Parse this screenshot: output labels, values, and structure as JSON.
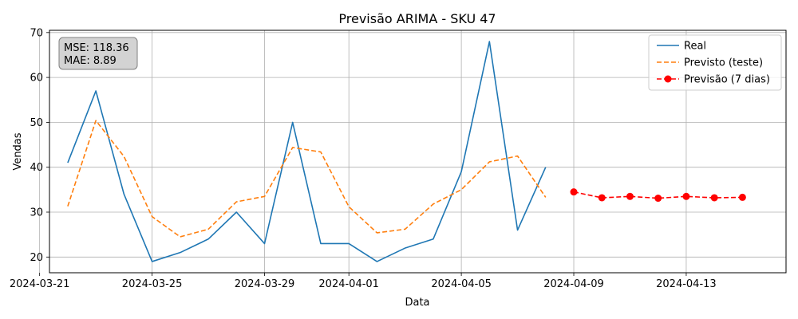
{
  "chart_data": {
    "type": "line",
    "title": "Previsão ARIMA - SKU 47",
    "xlabel": "Data",
    "ylabel": "Vendas",
    "xlim": [
      "2024-03-21",
      "2024-04-16"
    ],
    "ylim": [
      16.5,
      70.5
    ],
    "x_ticks": [
      "2024-03-21",
      "2024-03-25",
      "2024-03-29",
      "2024-04-01",
      "2024-04-05",
      "2024-04-09",
      "2024-04-13"
    ],
    "y_ticks": [
      20,
      30,
      40,
      50,
      60,
      70
    ],
    "grid": true,
    "legend_position": "top-right",
    "annotation": {
      "lines": [
        "MSE: 118.36",
        "MAE: 8.89"
      ]
    },
    "series": [
      {
        "name": "Real",
        "color": "#1f77b4",
        "style": "solid",
        "x": [
          "2024-03-22",
          "2024-03-23",
          "2024-03-24",
          "2024-03-25",
          "2024-03-26",
          "2024-03-27",
          "2024-03-28",
          "2024-03-29",
          "2024-03-30",
          "2024-03-31",
          "2024-04-01",
          "2024-04-02",
          "2024-04-03",
          "2024-04-04",
          "2024-04-05",
          "2024-04-06",
          "2024-04-07",
          "2024-04-08"
        ],
        "values": [
          41,
          57,
          34,
          19,
          21,
          24,
          30,
          23,
          50,
          23,
          23,
          19,
          22,
          24,
          39,
          68,
          26,
          40
        ]
      },
      {
        "name": "Previsto (teste)",
        "color": "#ff7f0e",
        "style": "dashed",
        "x": [
          "2024-03-22",
          "2024-03-23",
          "2024-03-24",
          "2024-03-25",
          "2024-03-26",
          "2024-03-27",
          "2024-03-28",
          "2024-03-29",
          "2024-03-30",
          "2024-03-31",
          "2024-04-01",
          "2024-04-02",
          "2024-04-03",
          "2024-04-04",
          "2024-04-05",
          "2024-04-06",
          "2024-04-07",
          "2024-04-08"
        ],
        "values": [
          31.3,
          50.4,
          42.4,
          29.0,
          24.5,
          26.2,
          32.3,
          33.5,
          44.4,
          43.4,
          31.2,
          25.4,
          26.2,
          31.8,
          35.0,
          41.2,
          42.5,
          33.3
        ]
      },
      {
        "name": "Previsão (7 dias)",
        "color": "#ff0000",
        "style": "dashed-markers",
        "x": [
          "2024-04-09",
          "2024-04-10",
          "2024-04-11",
          "2024-04-12",
          "2024-04-13",
          "2024-04-14",
          "2024-04-15"
        ],
        "values": [
          34.5,
          33.2,
          33.5,
          33.1,
          33.5,
          33.2,
          33.3
        ]
      }
    ]
  }
}
